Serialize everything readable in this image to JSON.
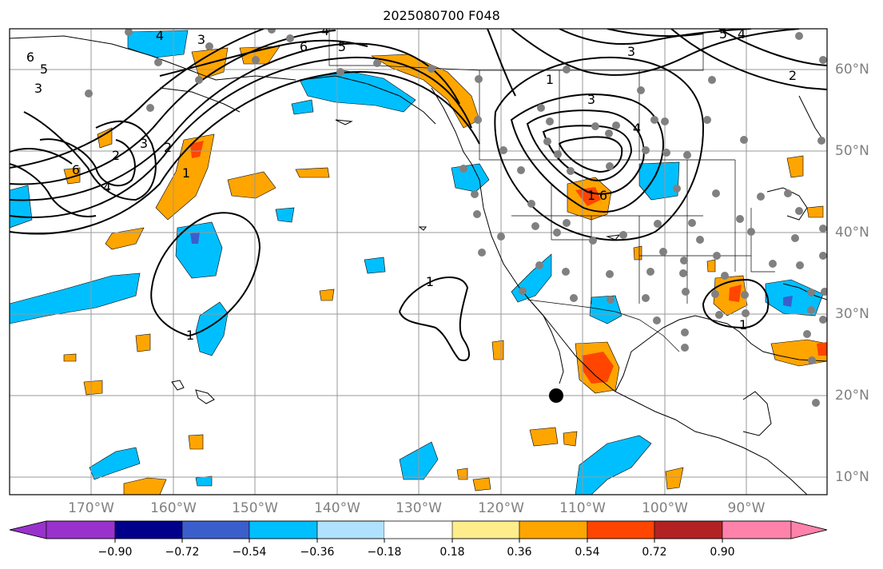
{
  "title": "2025080700 F048",
  "latitude_labels": [
    "60°N",
    "50°N",
    "40°N",
    "30°N",
    "20°N",
    "10°N"
  ],
  "longitude_labels": [
    "170°W",
    "160°W",
    "150°W",
    "140°W",
    "130°W",
    "120°W",
    "110°W",
    "100°W",
    "90°W"
  ],
  "colorbar": {
    "ticks": [
      "−0.90",
      "−0.72",
      "−0.54",
      "−0.36",
      "−0.18",
      "0.18",
      "0.36",
      "0.54",
      "0.72",
      "0.90"
    ],
    "colors": [
      "#9932cc",
      "#00008b",
      "#3a5fcd",
      "#00bfff",
      "#b0e2ff",
      "#ffffff",
      "#ffec8b",
      "#ffa500",
      "#ff4500",
      "#b22222",
      "#ff82ab"
    ]
  },
  "contour_labels": [
    "6",
    "5",
    "3",
    "4",
    "3",
    "2",
    "6",
    "5",
    "4",
    "4",
    "3",
    "2",
    "6",
    "1",
    "3",
    "4",
    "6",
    "5",
    "4",
    "3",
    "2",
    "1",
    "1",
    "1",
    "1",
    "1"
  ],
  "colors": {
    "orange": "#ffa500",
    "red": "#ff4500",
    "blue": "#00bfff",
    "dark_blue": "#3a5fcd",
    "grid": "#999999",
    "station_dot": "#808080"
  }
}
